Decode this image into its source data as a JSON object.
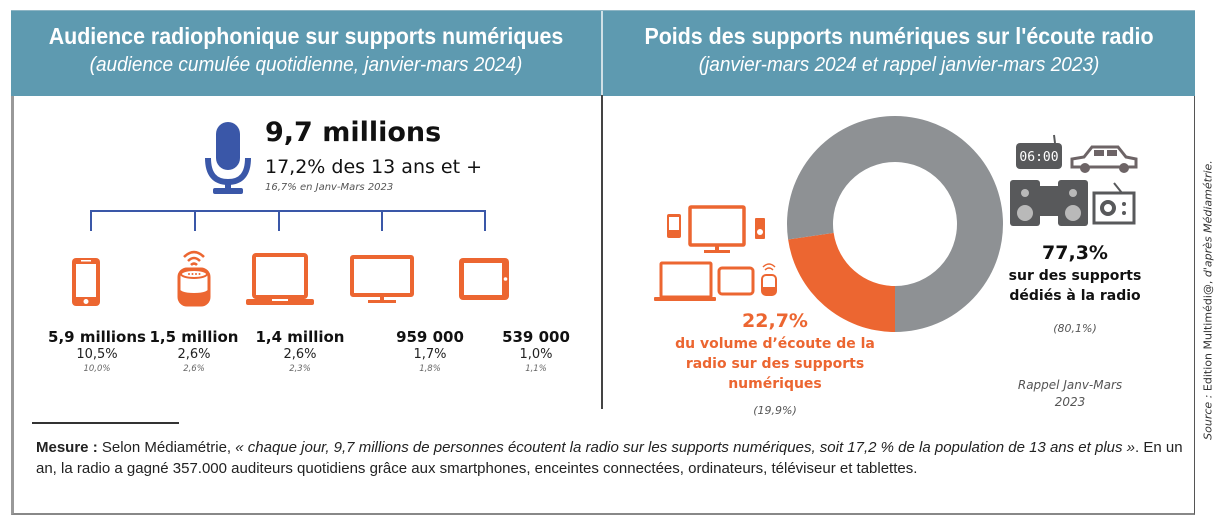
{
  "left_panel": {
    "title": "Audience radiophonique sur supports numériques",
    "subtitle": "(audience cumulée quotidienne, janvier-mars 2024)",
    "total": {
      "value": "9,7 millions",
      "share": "17,2% des 13 ans et +",
      "previous": "16,7% en Janv-Mars 2023"
    },
    "devices": [
      {
        "icon": "smartphone-icon",
        "value": "5,9 millions",
        "share": "10,5%",
        "previous": "10,0%"
      },
      {
        "icon": "smart-speaker-icon",
        "value": "1,5 million",
        "share": "2,6%",
        "previous": "2,6%"
      },
      {
        "icon": "laptop-icon",
        "value": "1,4 million",
        "share": "2,6%",
        "previous": "2,3%"
      },
      {
        "icon": "tv-icon",
        "value": "959 000",
        "share": "1,7%",
        "previous": "1,8%"
      },
      {
        "icon": "tablet-icon",
        "value": "539 000",
        "share": "1,0%",
        "previous": "1,1%"
      }
    ]
  },
  "right_panel": {
    "title": "Poids des supports numériques sur l'écoute radio",
    "subtitle": "(janvier-mars 2024 et rappel janvier-mars 2023)",
    "digital": {
      "value": "22,7%",
      "label": "du volume d’écoute de la radio sur des supports numériques",
      "label_lines": [
        "du volume d’écoute de la",
        "radio sur des supports",
        "numériques"
      ],
      "previous": "(19,9%)"
    },
    "dedicated": {
      "value": "77,3%",
      "label_lines": [
        "sur des supports",
        "dédiés à la radio"
      ],
      "previous": "(80,1%)",
      "clock_text": "06:00"
    },
    "rappel_lines": [
      "Rappel Janv-Mars",
      "2023"
    ]
  },
  "chart_data": {
    "type": "pie",
    "title": "Poids des supports numériques sur l'écoute radio",
    "categories": [
      "supports numériques",
      "supports dédiés à la radio"
    ],
    "values": [
      22.7,
      77.3
    ],
    "previous_values": [
      19.9,
      80.1
    ],
    "colors": [
      "#ec6631",
      "#8e9194"
    ]
  },
  "footer": {
    "label": "Mesure :",
    "text_plain_1": " Selon Médiamétrie, ",
    "text_italic": "« chaque jour, 9,7 millions de personnes écoutent la radio sur les supports numériques, soit 17,2 % de la population de 13 ans et plus »",
    "text_plain_2": ". En un an, la radio a gagné 357.000 auditeurs quotidiens grâce aux smartphones, enceintes connectées, ordinateurs, téléviseur et tablettes."
  },
  "source": {
    "prefix": "Source : ",
    "plain": "Edition Multimédi@, ",
    "italic": "d'après Médiamétrie."
  },
  "colors": {
    "header": "#5e9ab0",
    "orange": "#ec6631",
    "blue": "#3a57a8",
    "grey": "#8e9194",
    "dark_grey": "#58595b"
  }
}
